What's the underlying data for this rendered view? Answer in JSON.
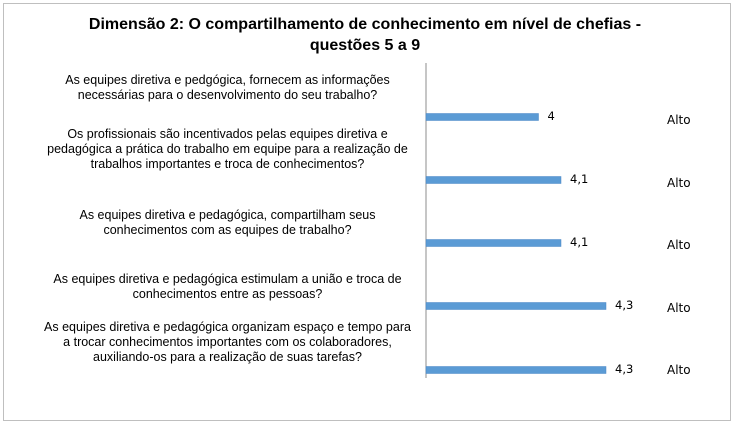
{
  "chart_data": {
    "type": "bar",
    "orientation": "horizontal",
    "title": "Dimensão 2: O compartilhamento de conhecimento em nível de chefias - questões 5 a 9",
    "categories": [
      "As equipes diretiva e pedgógica, fornecem as informações necessárias para o desenvolvimento do seu trabalho?",
      "Os profissionais são incentivados pelas equipes diretiva e pedagógica a prática do trabalho em equipe para a realização de trabalhos importantes e troca de conhecimentos?",
      "As equipes diretiva e pedagógica, compartilham seus conhecimentos com as equipes de trabalho?",
      "As equipes diretiva e pedagógica estimulam a união e troca de conhecimentos entre as pessoas?",
      "As equipes diretiva e pedagógica organizam espaço e tempo para a trocar conhecimentos importantes com os colaboradores, auxiliando-os para a realização de suas tarefas?"
    ],
    "values": [
      4,
      4.1,
      4.1,
      4.3,
      4.3
    ],
    "value_labels": [
      "4",
      "4,1",
      "4,1",
      "4,3",
      "4,3"
    ],
    "levels": [
      "Alto",
      "Alto",
      "Alto",
      "Alto",
      "Alto"
    ],
    "xlim": [
      3.5,
      4.3
    ],
    "bar_color": "#5b9bd5",
    "grid": false,
    "legend": "none"
  }
}
